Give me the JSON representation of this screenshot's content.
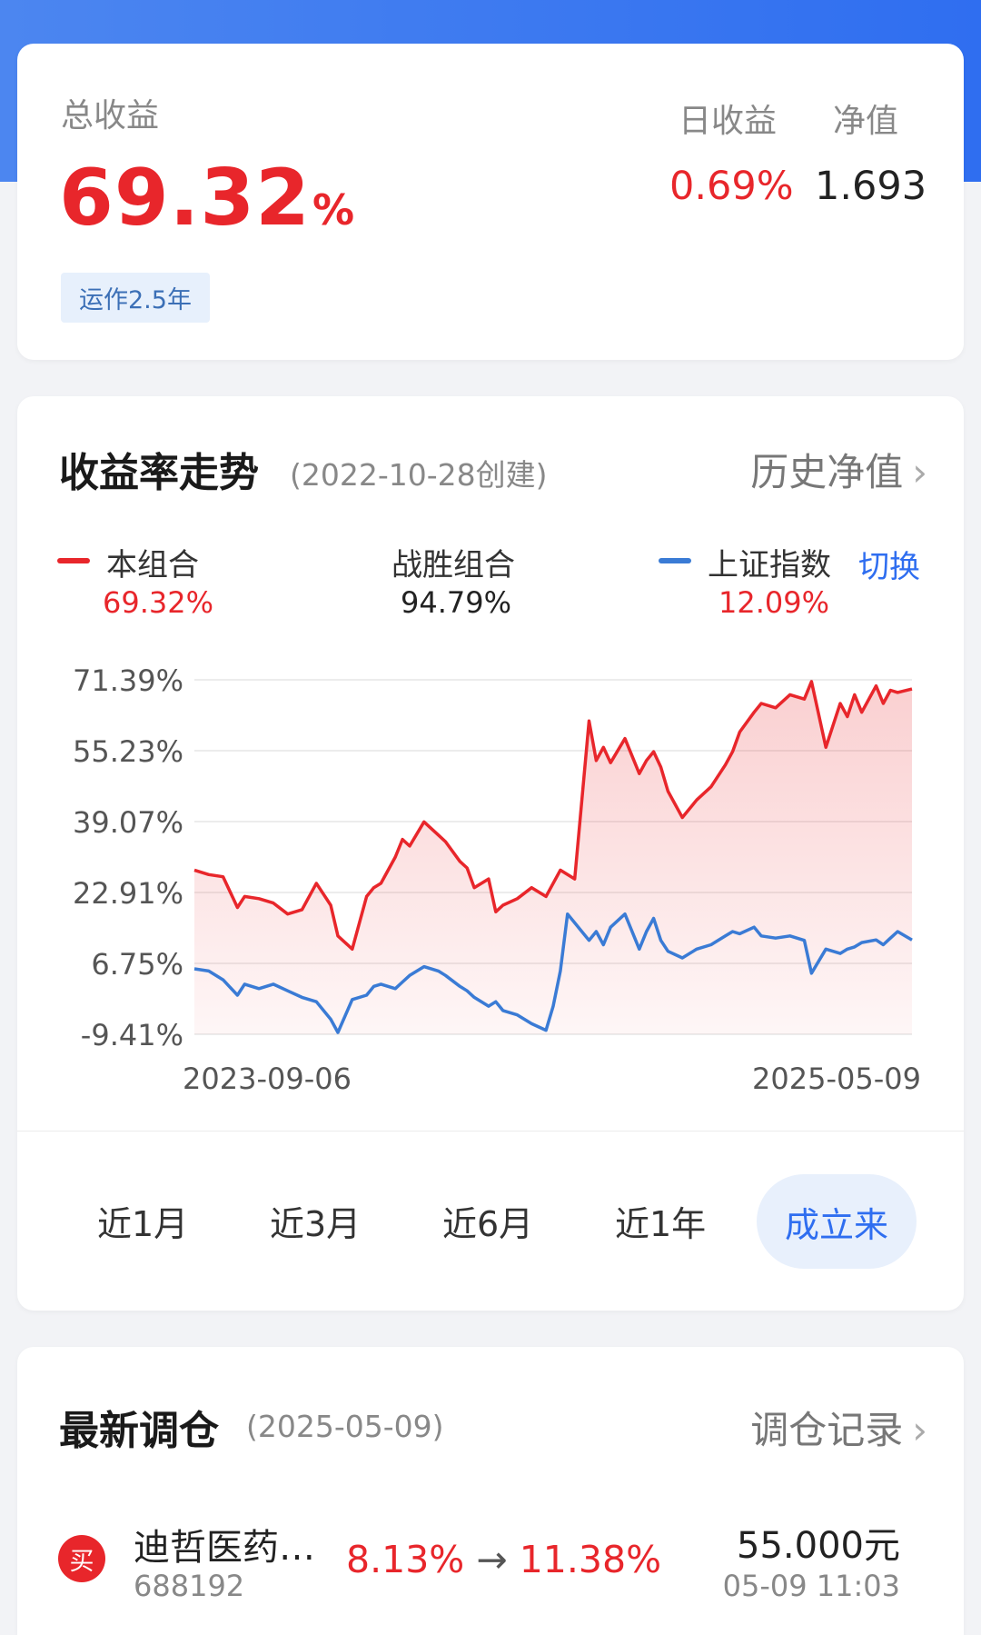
{
  "summary": {
    "total_label": "总收益",
    "total_value": "69.32",
    "total_unit": "%",
    "run_badge": "运作2.5年",
    "daily_label": "日收益",
    "daily_value": "0.69%",
    "nav_label": "净值",
    "nav_value": "1.693"
  },
  "trend": {
    "title": "收益率走势",
    "subtitle": "(2022-10-28创建)",
    "history_link": "历史净值",
    "legend": {
      "portfolio_name": "本组合",
      "portfolio_value": "69.32%",
      "beat_name": "战胜组合",
      "beat_value": "94.79%",
      "index_name": "上证指数",
      "index_value": "12.09%",
      "switch_label": "切换"
    },
    "periods": [
      "近1月",
      "近3月",
      "近6月",
      "近1年",
      "成立来"
    ],
    "colors": {
      "portfolio": "#e8262b",
      "index": "#3a7bd5",
      "accent": "#2f6ef0"
    }
  },
  "chart_data": {
    "type": "line",
    "x_start": "2023-09-06",
    "x_end": "2025-05-09",
    "x_tick_labels": [
      "2023-09-06",
      "2025-05-09"
    ],
    "y_tick_labels": [
      "71.39%",
      "55.23%",
      "39.07%",
      "22.91%",
      "6.75%",
      "-9.41%"
    ],
    "ylim": [
      -9.41,
      71.39
    ],
    "grid": true,
    "series": [
      {
        "name": "本组合",
        "color": "#e8262b",
        "x": [
          0.0,
          0.02,
          0.04,
          0.06,
          0.07,
          0.09,
          0.11,
          0.13,
          0.15,
          0.17,
          0.19,
          0.2,
          0.22,
          0.24,
          0.25,
          0.26,
          0.28,
          0.29,
          0.3,
          0.32,
          0.34,
          0.35,
          0.37,
          0.38,
          0.39,
          0.41,
          0.42,
          0.43,
          0.45,
          0.47,
          0.49,
          0.51,
          0.53,
          0.55,
          0.56,
          0.57,
          0.58,
          0.6,
          0.62,
          0.63,
          0.64,
          0.65,
          0.66,
          0.68,
          0.7,
          0.72,
          0.74,
          0.75,
          0.76,
          0.78,
          0.79,
          0.81,
          0.83,
          0.85,
          0.86,
          0.88,
          0.9,
          0.91,
          0.92,
          0.93,
          0.95,
          0.96,
          0.97,
          0.98,
          1.0
        ],
        "values": [
          28.0,
          27.0,
          26.5,
          19.5,
          22.0,
          21.5,
          20.5,
          18.0,
          19.0,
          25.0,
          20.0,
          13.0,
          10.0,
          22.0,
          24.0,
          25.0,
          31.0,
          35.0,
          33.5,
          39.0,
          36.0,
          34.5,
          30.0,
          28.5,
          24.0,
          26.0,
          18.5,
          20.0,
          21.5,
          24.0,
          22.0,
          28.0,
          26.0,
          62.0,
          53.0,
          56.0,
          52.5,
          58.0,
          50.0,
          53.0,
          55.0,
          51.5,
          46.0,
          40.0,
          44.0,
          47.0,
          52.0,
          55.0,
          59.5,
          64.0,
          66.0,
          65.0,
          68.0,
          67.0,
          71.0,
          56.0,
          66.0,
          63.0,
          68.0,
          64.0,
          70.0,
          66.0,
          69.0,
          68.5,
          69.3
        ]
      },
      {
        "name": "上证指数",
        "color": "#3a7bd5",
        "x": [
          0.0,
          0.02,
          0.04,
          0.06,
          0.07,
          0.09,
          0.11,
          0.13,
          0.15,
          0.17,
          0.19,
          0.2,
          0.22,
          0.24,
          0.25,
          0.26,
          0.28,
          0.29,
          0.3,
          0.32,
          0.34,
          0.35,
          0.37,
          0.38,
          0.39,
          0.41,
          0.42,
          0.43,
          0.45,
          0.47,
          0.49,
          0.5,
          0.51,
          0.52,
          0.55,
          0.56,
          0.57,
          0.58,
          0.6,
          0.62,
          0.63,
          0.64,
          0.65,
          0.66,
          0.68,
          0.7,
          0.72,
          0.74,
          0.75,
          0.76,
          0.78,
          0.79,
          0.81,
          0.83,
          0.85,
          0.86,
          0.88,
          0.9,
          0.91,
          0.92,
          0.93,
          0.95,
          0.96,
          0.97,
          0.98,
          1.0
        ],
        "values": [
          5.5,
          5.0,
          3.0,
          -0.5,
          2.0,
          1.0,
          2.0,
          0.5,
          -1.0,
          -2.0,
          -6.0,
          -9.0,
          -1.5,
          -0.5,
          1.5,
          2.0,
          1.0,
          2.5,
          4.0,
          6.0,
          5.0,
          4.0,
          1.5,
          0.5,
          -1.0,
          -3.0,
          -2.0,
          -4.0,
          -5.0,
          -7.0,
          -8.5,
          -3.0,
          5.0,
          18.0,
          12.0,
          14.0,
          11.0,
          15.0,
          18.0,
          10.0,
          14.0,
          17.0,
          12.0,
          9.5,
          8.0,
          10.0,
          11.0,
          13.0,
          14.0,
          13.5,
          15.0,
          13.0,
          12.5,
          13.0,
          12.0,
          4.5,
          10.0,
          9.0,
          10.0,
          10.5,
          11.5,
          12.1,
          11.0,
          12.5,
          14.0,
          12.09
        ]
      }
    ]
  },
  "rebalance": {
    "title": "最新调仓",
    "subtitle": "(2025-05-09)",
    "record_link": "调仓记录",
    "item": {
      "action": "买",
      "name": "迪哲医药…",
      "code": "688192",
      "weight_from": "8.13%",
      "arrow": "→",
      "weight_to": "11.38%",
      "price": "55.000元",
      "time": "05-09 11:03"
    }
  },
  "icons": [
    "chevron-right-icon",
    "buy-icon"
  ]
}
